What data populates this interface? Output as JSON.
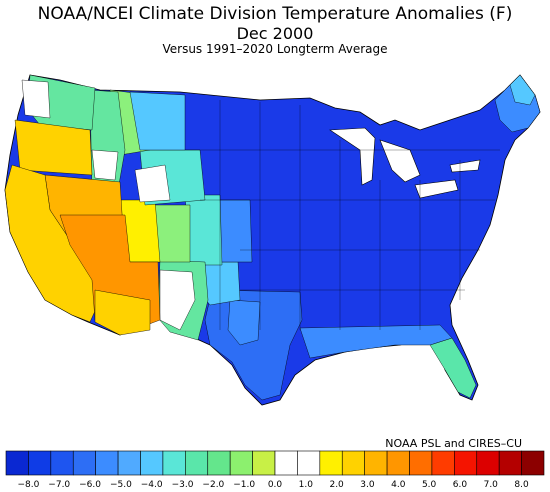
{
  "title": "NOAA/NCEI Climate Division Temperature Anomalies (F)",
  "period": "Dec 2000",
  "subtitle": "Versus 1991–2020 Longterm Average",
  "credit": "NOAA PSL and CIRES–CU",
  "legend": {
    "colors": [
      "#0a28d2",
      "#0f3ce6",
      "#1e55f0",
      "#2d6ef5",
      "#3c8cff",
      "#50aaff",
      "#55c8ff",
      "#5ae6d7",
      "#5ae6aa",
      "#64e68c",
      "#8cf06e",
      "#c8f046",
      "#ffffff",
      "#ffffff",
      "#fff000",
      "#ffd200",
      "#ffb400",
      "#ff9600",
      "#ff6e00",
      "#ff3c00",
      "#f51400",
      "#dc0000",
      "#b40000",
      "#8c0000"
    ],
    "tick_labels": [
      "−8.0",
      "−7.0",
      "−6.0",
      "−5.0",
      "−4.0",
      "−3.0",
      "−2.0",
      "−1.0",
      "0.0",
      "1.0",
      "2.0",
      "3.0",
      "4.0",
      "5.0",
      "6.0",
      "7.0",
      "8.0"
    ]
  },
  "anomaly_colors": {
    "deep_blue": "#1a2ee6",
    "blue": "#2a55ff",
    "mid_blue": "#3c8cff",
    "sky": "#55c8ff",
    "cyan": "#5ae6d7",
    "aqua_green": "#64e6a0",
    "green": "#8cf07c",
    "white": "#ffffff",
    "yellow": "#fff000",
    "gold": "#ffd200",
    "orange": "#ffb400",
    "dark_orange": "#ff9600"
  }
}
